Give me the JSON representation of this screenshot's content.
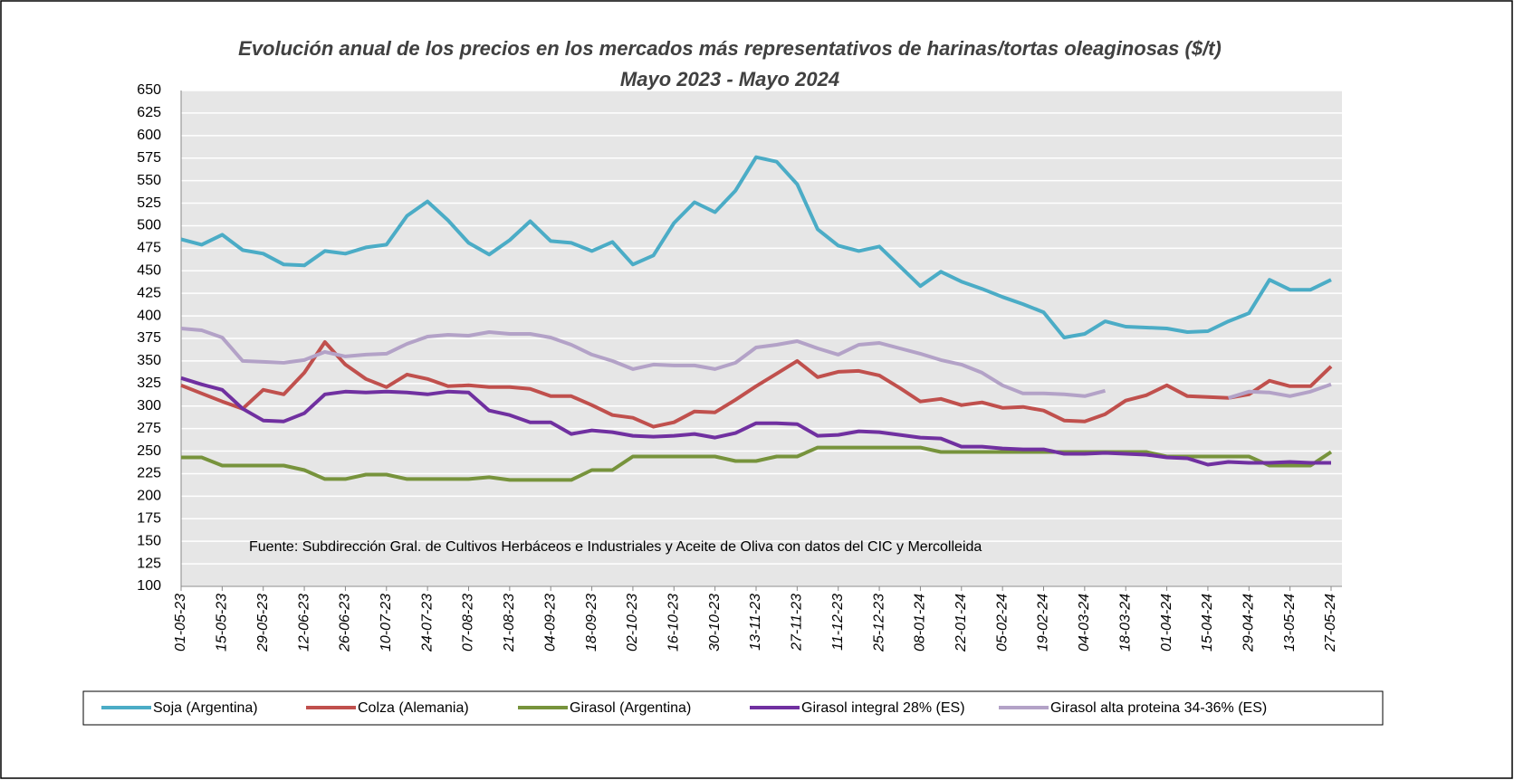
{
  "chart_data": {
    "type": "line",
    "title": "Evolución anual de los precios en los mercados más representativos de harinas/tortas oleaginosas ($/t)",
    "subtitle": "Mayo 2023 - Mayo 2024",
    "annotation": "Fuente: Subdirección Gral. de Cultivos Herbáceos e Industriales y Aceite de Oliva con datos del CIC y Mercolleida",
    "categories": [
      "01-05-23",
      null,
      "15-05-23",
      null,
      "29-05-23",
      null,
      "12-06-23",
      null,
      "26-06-23",
      null,
      "10-07-23",
      null,
      "24-07-23",
      null,
      "07-08-23",
      null,
      "21-08-23",
      null,
      "04-09-23",
      null,
      "18-09-23",
      null,
      "02-10-23",
      null,
      "16-10-23",
      null,
      "30-10-23",
      null,
      "13-11-23",
      null,
      "27-11-23",
      null,
      "11-12-23",
      null,
      "25-12-23",
      null,
      "08-01-24",
      null,
      "22-01-24",
      null,
      "05-02-24",
      null,
      "19-02-24",
      null,
      "04-03-24",
      null,
      "18-03-24",
      null,
      "01-04-24",
      null,
      "15-04-24",
      null,
      "29-04-24",
      null,
      "13-05-24",
      null,
      "27-05-24"
    ],
    "ylim": [
      100,
      650
    ],
    "yticks": [
      100,
      125,
      150,
      175,
      200,
      225,
      250,
      275,
      300,
      325,
      350,
      375,
      400,
      425,
      450,
      475,
      500,
      525,
      550,
      575,
      600,
      625,
      650
    ],
    "grid": true,
    "legend": "bottom",
    "series": [
      {
        "name": "Soja (Argentina)",
        "color": "#4bacc6",
        "values": [
          485,
          479,
          490,
          473,
          469,
          457,
          456,
          472,
          469,
          476,
          479,
          511,
          527,
          506,
          481,
          468,
          484,
          505,
          483,
          481,
          472,
          482,
          457,
          467,
          503,
          526,
          515,
          539,
          576,
          571,
          546,
          496,
          478,
          472,
          477,
          455,
          433,
          449,
          438,
          430,
          421,
          413,
          404,
          376,
          380,
          394,
          388,
          387,
          386,
          382,
          383,
          394,
          403,
          440,
          429,
          429,
          440
        ]
      },
      {
        "name": "Colza (Alemania)",
        "color": "#c0504d",
        "values": [
          323,
          314,
          305,
          297,
          318,
          313,
          337,
          371,
          346,
          330,
          321,
          335,
          330,
          322,
          323,
          321,
          321,
          319,
          311,
          311,
          301,
          290,
          287,
          277,
          282,
          294,
          293,
          307,
          322,
          336,
          350,
          332,
          338,
          339,
          334,
          320,
          305,
          308,
          301,
          304,
          298,
          299,
          295,
          284,
          283,
          291,
          306,
          312,
          323,
          311,
          310,
          309,
          313,
          328,
          322,
          322,
          344
        ]
      },
      {
        "name": "Girasol (Argentina)",
        "color": "#77933c",
        "values": [
          243,
          243,
          234,
          234,
          234,
          234,
          229,
          219,
          219,
          224,
          224,
          219,
          219,
          219,
          219,
          221,
          218,
          218,
          218,
          218,
          229,
          229,
          244,
          244,
          244,
          244,
          244,
          239,
          239,
          244,
          244,
          254,
          254,
          254,
          254,
          254,
          254,
          249,
          249,
          249,
          249,
          249,
          249,
          249,
          249,
          249,
          249,
          249,
          244,
          244,
          244,
          244,
          244,
          234,
          234,
          234,
          249
        ]
      },
      {
        "name": "Girasol integral 28% (ES)",
        "color": "#7030a0",
        "values": [
          331,
          324,
          318,
          297,
          284,
          283,
          292,
          313,
          316,
          315,
          316,
          315,
          313,
          316,
          315,
          295,
          290,
          282,
          282,
          269,
          273,
          271,
          267,
          266,
          267,
          269,
          265,
          270,
          281,
          281,
          280,
          267,
          268,
          272,
          271,
          268,
          265,
          264,
          255,
          255,
          253,
          252,
          252,
          247,
          247,
          248,
          247,
          246,
          243,
          242,
          235,
          238,
          237,
          237,
          238,
          237,
          237
        ]
      },
      {
        "name": "Girasol alta proteina 34-36% (ES)",
        "color": "#b3a2c7",
        "values": [
          386,
          384,
          376,
          350,
          349,
          348,
          351,
          360,
          355,
          357,
          358,
          369,
          377,
          379,
          378,
          382,
          380,
          380,
          376,
          368,
          357,
          350,
          341,
          346,
          345,
          345,
          341,
          348,
          365,
          368,
          372,
          364,
          357,
          368,
          370,
          364,
          358,
          351,
          346,
          337,
          323,
          314,
          314,
          313,
          311,
          317,
          null,
          null,
          null,
          null,
          null,
          309,
          316,
          315,
          311,
          316,
          324
        ]
      }
    ]
  }
}
